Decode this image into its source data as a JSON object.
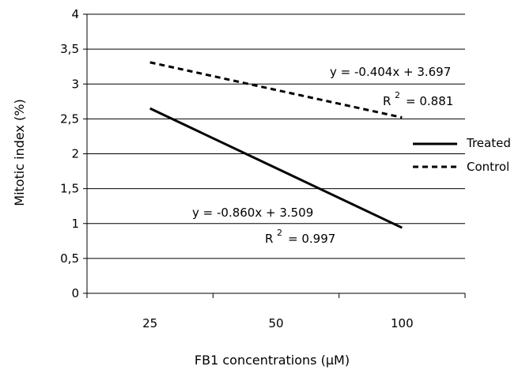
{
  "chart_data": {
    "type": "line",
    "xlabel": "FB1 concentrations (μM)",
    "ylabel": "Mitotic index (%)",
    "categories": [
      "25",
      "50",
      "100"
    ],
    "ylim": [
      0,
      4
    ],
    "yticks": [
      {
        "value": 0,
        "label": "0"
      },
      {
        "value": 0.5,
        "label": "0,5"
      },
      {
        "value": 1,
        "label": "1"
      },
      {
        "value": 1.5,
        "label": "1,5"
      },
      {
        "value": 2,
        "label": "2"
      },
      {
        "value": 2.5,
        "label": "2,5"
      },
      {
        "value": 3,
        "label": "3"
      },
      {
        "value": 3.5,
        "label": "3,5"
      },
      {
        "value": 4,
        "label": "4"
      }
    ],
    "grid": true,
    "legend_position": "right",
    "series": [
      {
        "name": "Treated",
        "style": "solid",
        "color": "#000000",
        "points": [
          {
            "x": "25",
            "y": 2.65
          },
          {
            "x": "100",
            "y": 0.94
          }
        ],
        "equation": "y = -0.860x + 3.509",
        "r2_label": "R",
        "r2_sup": "2",
        "r2_value": "= 0.997"
      },
      {
        "name": "Control",
        "style": "dashed",
        "color": "#000000",
        "points": [
          {
            "x": "25",
            "y": 3.31
          },
          {
            "x": "100",
            "y": 2.52
          }
        ],
        "equation": "y = -0.404x + 3.697",
        "r2_label": "R",
        "r2_sup": "2",
        "r2_value": "= 0.881"
      }
    ]
  }
}
